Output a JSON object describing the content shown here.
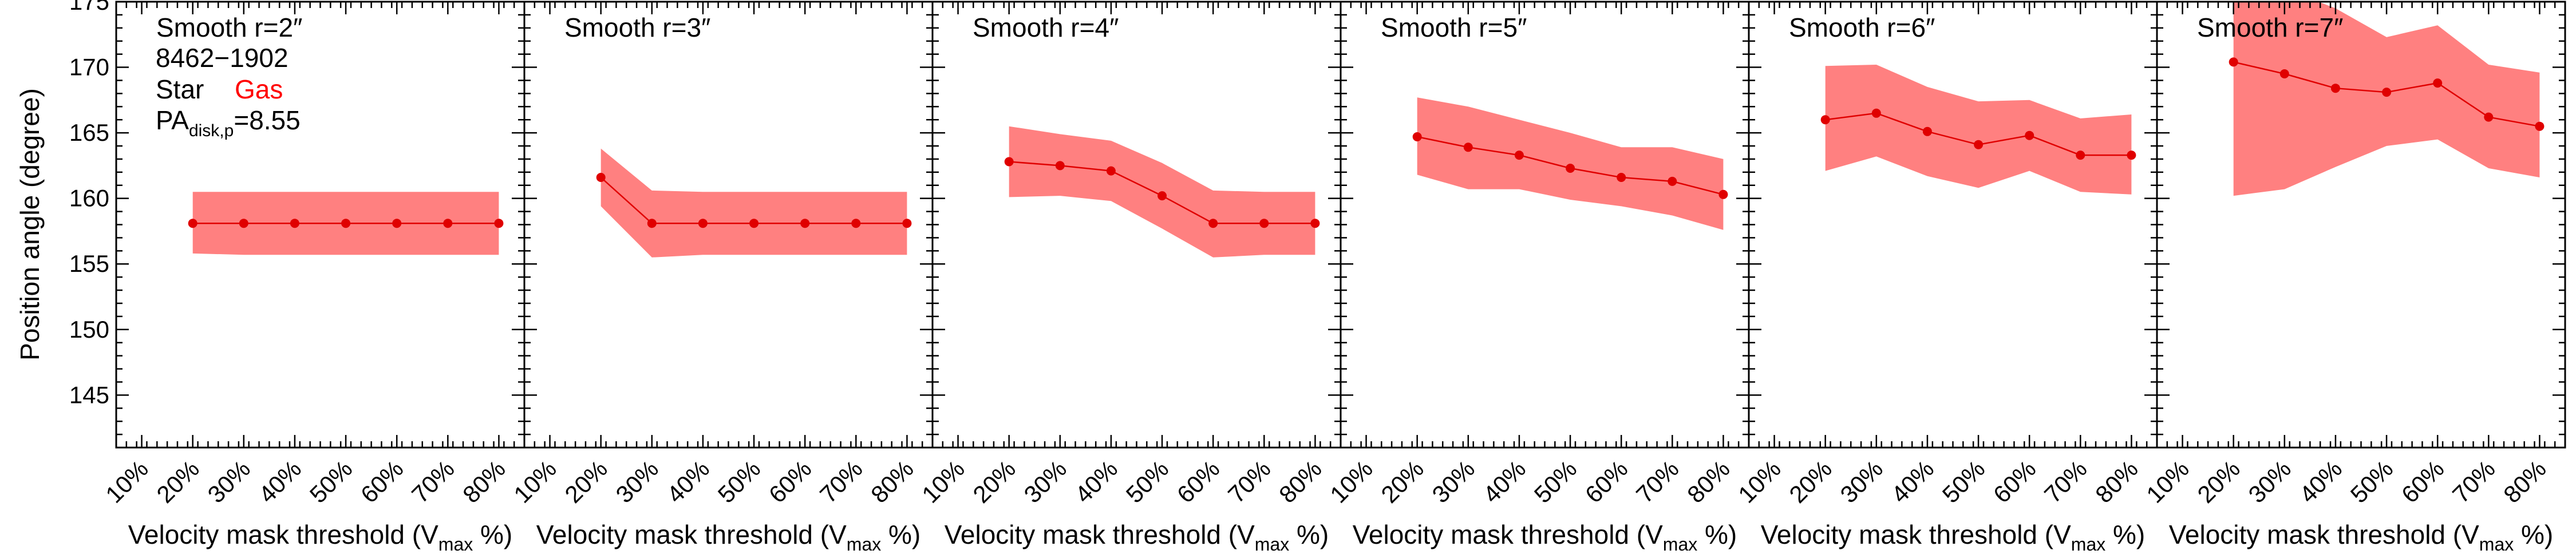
{
  "legend": {
    "object_id": "8462−1902",
    "star_label": "Star",
    "gas_label": "Gas",
    "gas_color": "#ff0000",
    "pa_prefix": "PA",
    "pa_subscript": "disk,p",
    "pa_value": "=8.55"
  },
  "colors": {
    "band": "#ff8080",
    "line": "#e00000"
  },
  "chart_data": {
    "type": "line",
    "ylabel": "Position angle (degree)",
    "xlabel_prefix": "Velocity mask threshold (V",
    "xlabel_sub": "max",
    "xlabel_suffix": " %)",
    "ylim": [
      141,
      175
    ],
    "yticks": [
      145,
      150,
      155,
      160,
      165,
      170,
      175
    ],
    "xlim": [
      5,
      85
    ],
    "xticks": [
      10,
      20,
      30,
      40,
      50,
      60,
      70,
      80
    ],
    "xtick_labels": [
      "10%",
      "20%",
      "30%",
      "40%",
      "50%",
      "60%",
      "70%",
      "80%"
    ],
    "panels": [
      {
        "title": "Smooth r=2″",
        "x": [
          20,
          30,
          40,
          50,
          60,
          70,
          80
        ],
        "gas_pa": [
          158.1,
          158.1,
          158.1,
          158.1,
          158.1,
          158.1,
          158.1
        ],
        "gas_pa_upper": [
          160.5,
          160.5,
          160.5,
          160.5,
          160.5,
          160.5,
          160.5
        ],
        "gas_pa_lower": [
          155.8,
          155.7,
          155.7,
          155.7,
          155.7,
          155.7,
          155.7
        ]
      },
      {
        "title": "Smooth r=3″",
        "x": [
          20,
          30,
          40,
          50,
          60,
          70,
          80
        ],
        "gas_pa": [
          161.6,
          158.1,
          158.1,
          158.1,
          158.1,
          158.1,
          158.1
        ],
        "gas_pa_upper": [
          163.8,
          160.6,
          160.5,
          160.5,
          160.5,
          160.5,
          160.5
        ],
        "gas_pa_lower": [
          159.4,
          155.5,
          155.7,
          155.7,
          155.7,
          155.7,
          155.7
        ]
      },
      {
        "title": "Smooth r=4″",
        "x": [
          20,
          30,
          40,
          50,
          60,
          70,
          80
        ],
        "gas_pa": [
          162.8,
          162.5,
          162.1,
          160.2,
          158.1,
          158.1,
          158.1
        ],
        "gas_pa_upper": [
          165.5,
          164.9,
          164.4,
          162.7,
          160.6,
          160.5,
          160.5
        ],
        "gas_pa_lower": [
          160.1,
          160.2,
          159.8,
          157.7,
          155.5,
          155.7,
          155.7
        ]
      },
      {
        "title": "Smooth r=5″",
        "x": [
          20,
          30,
          40,
          50,
          60,
          70,
          80
        ],
        "gas_pa": [
          164.7,
          163.9,
          163.3,
          162.3,
          161.6,
          161.3,
          160.3
        ],
        "gas_pa_upper": [
          167.7,
          167.0,
          166.0,
          165.0,
          163.9,
          163.9,
          163.0
        ],
        "gas_pa_lower": [
          161.8,
          160.7,
          160.7,
          159.9,
          159.4,
          158.7,
          157.6
        ]
      },
      {
        "title": "Smooth r=6″",
        "x": [
          20,
          30,
          40,
          50,
          60,
          70,
          80
        ],
        "gas_pa": [
          166.0,
          166.5,
          165.1,
          164.1,
          164.8,
          163.3,
          163.3
        ],
        "gas_pa_upper": [
          170.1,
          170.2,
          168.5,
          167.4,
          167.5,
          166.1,
          166.4
        ],
        "gas_pa_lower": [
          162.1,
          163.2,
          161.7,
          160.8,
          162.1,
          160.5,
          160.3
        ]
      },
      {
        "title": "Smooth r=7″",
        "x": [
          20,
          30,
          40,
          50,
          60,
          70,
          80
        ],
        "gas_pa": [
          170.4,
          169.5,
          168.4,
          168.1,
          168.8,
          166.2,
          165.5
        ],
        "gas_pa_upper": [
          177.0,
          176.0,
          174.5,
          172.3,
          173.2,
          170.2,
          169.6
        ],
        "gas_pa_lower": [
          160.2,
          160.7,
          162.4,
          164.0,
          164.5,
          162.3,
          161.6
        ]
      }
    ]
  }
}
